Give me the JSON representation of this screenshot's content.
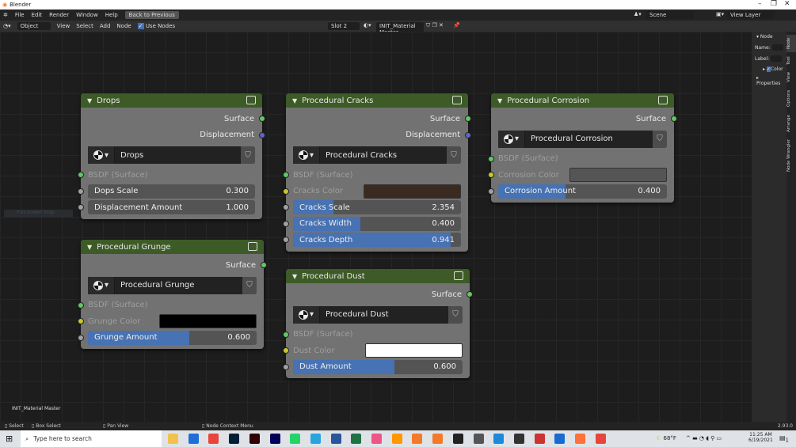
{
  "window": {
    "title": "Blender",
    "minimize": "–",
    "restore": "❐",
    "close": "✕"
  },
  "menubar": {
    "items": [
      "File",
      "Edit",
      "Render",
      "Window",
      "Help"
    ],
    "back_button": "Back to Previous",
    "scene": "Scene",
    "view_layer": "View Layer"
  },
  "header": {
    "mode": "Object",
    "menus": [
      "View",
      "Select",
      "Add",
      "Node"
    ],
    "use_nodes": "Use Nodes",
    "use_nodes_checked": true,
    "slot": "Slot 2",
    "material": "INIT_Material Master"
  },
  "sidebar": {
    "panel": "Node",
    "name_label": "Name:",
    "label_label": "Label:",
    "color_label": "Color",
    "properties_label": "Properties",
    "tabs": [
      "Node",
      "Tool",
      "View",
      "Options",
      "Arrange",
      "Node Wrangler"
    ]
  },
  "editor": {
    "overlay_label": "INIT_Material Master",
    "snip_hint": "Full-screen Snip"
  },
  "nodes": [
    {
      "id": "drops",
      "title": "Drops",
      "outputs": [
        {
          "label": "Surface",
          "socket": "#63c763"
        },
        {
          "label": "Displacement",
          "socket": "#6363c7"
        }
      ],
      "selector": "Drops",
      "inputs": [
        {
          "type": "in",
          "label": "BSDF (Surface)",
          "socket": "#63c763"
        },
        {
          "type": "slider",
          "label": "Dops Scale",
          "value": "0.300",
          "fill": 0
        },
        {
          "type": "slider",
          "label": "Displacement Amount",
          "value": "1.000",
          "fill": 0
        }
      ]
    },
    {
      "id": "grunge",
      "title": "Procedural Grunge",
      "outputs": [
        {
          "label": "Surface",
          "socket": "#63c763"
        }
      ],
      "selector": "Procedural Grunge",
      "inputs": [
        {
          "type": "in",
          "label": "BSDF (Surface)",
          "socket": "#63c763"
        },
        {
          "type": "color",
          "label": "Grunge Color",
          "color": "#000000"
        },
        {
          "type": "slider",
          "label": "Grunge Amount",
          "value": "0.600",
          "fill": 0.6
        }
      ]
    },
    {
      "id": "cracks",
      "title": "Procedural Cracks",
      "outputs": [
        {
          "label": "Surface",
          "socket": "#63c763"
        },
        {
          "label": "Displacement",
          "socket": "#6363c7"
        }
      ],
      "selector": "Procedural Cracks",
      "inputs": [
        {
          "type": "in",
          "label": "BSDF (Surface)",
          "socket": "#63c763"
        },
        {
          "type": "color",
          "label": "Cracks Color",
          "color": "#3a2a20"
        },
        {
          "type": "slider",
          "label": "Cracks Scale",
          "value": "2.354",
          "fill": 0.24
        },
        {
          "type": "slider",
          "label": "Cracks Width",
          "value": "0.400",
          "fill": 0.4
        },
        {
          "type": "slider",
          "label": "Cracks Depth",
          "value": "0.941",
          "fill": 0.941
        }
      ]
    },
    {
      "id": "dust",
      "title": "Procedural Dust",
      "outputs": [
        {
          "label": "Surface",
          "socket": "#63c763"
        }
      ],
      "selector": "Procedural Dust",
      "inputs": [
        {
          "type": "in",
          "label": "BSDF (Surface)",
          "socket": "#63c763"
        },
        {
          "type": "color",
          "label": "Dust Color",
          "color": "#ffffff"
        },
        {
          "type": "slider",
          "label": "Dust Amount",
          "value": "0.600",
          "fill": 0.6
        }
      ]
    },
    {
      "id": "corrosion",
      "title": "Procedural Corrosion",
      "outputs": [
        {
          "label": "Surface",
          "socket": "#63c763"
        }
      ],
      "selector": "Procedural Corrosion",
      "inputs": [
        {
          "type": "in",
          "label": "BSDF (Surface)",
          "socket": "#63c763"
        },
        {
          "type": "color",
          "label": "Corrosion Color",
          "color": "#555555"
        },
        {
          "type": "slider",
          "label": "Corrosion Amount",
          "value": "0.400",
          "fill": 0.4
        }
      ]
    }
  ],
  "statusbar": {
    "items": [
      "Select",
      "Box Select",
      "Pan View",
      "Node Context Menu"
    ],
    "version": "2.93.0"
  },
  "taskbar": {
    "search_placeholder": "Type here to search",
    "weather": "68°F",
    "time": "11:25 AM",
    "date": "6/19/2021",
    "notifications": "1",
    "apps": [
      "File Explorer",
      "Mail",
      "Chrome",
      "Photoshop",
      "Illustrator",
      "Premiere",
      "WhatsApp",
      "Telegram",
      "Word",
      "Excel",
      "Paint",
      "Sublime",
      "Blender",
      "Blender",
      "OBS",
      "App",
      "App",
      "App",
      "App",
      "Photos",
      "Firefox",
      "Chrome"
    ],
    "app_colors": [
      "#f2c14e",
      "#1e6fd9",
      "#e8453c",
      "#001e36",
      "#310000",
      "#00005b",
      "#25d366",
      "#2aa3df",
      "#2b579a",
      "#217346",
      "#e58",
      "#ff9800",
      "#f5792a",
      "#f5792a",
      "#222",
      "#555",
      "#1c8adb",
      "#333",
      "#c33",
      "#1a6bd0",
      "#ff7139",
      "#e8453c"
    ]
  }
}
